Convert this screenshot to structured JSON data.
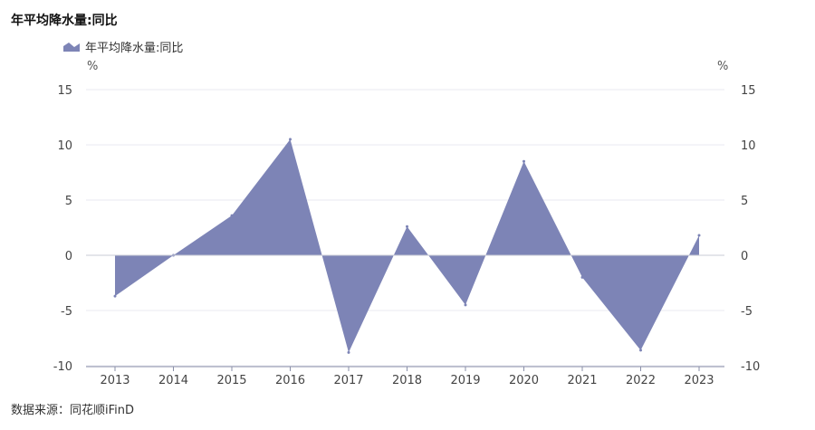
{
  "title": "年平均降水量:同比",
  "legend": {
    "label": "年平均降水量:同比",
    "color": "#7d84b6"
  },
  "unit_left": "%",
  "unit_right": "%",
  "source": "数据来源：同花顺iFinD",
  "chart_data": {
    "type": "area",
    "title": "年平均降水量:同比",
    "categories": [
      "2013",
      "2014",
      "2015",
      "2016",
      "2017",
      "2018",
      "2019",
      "2020",
      "2021",
      "2022",
      "2023"
    ],
    "series": [
      {
        "name": "年平均降水量:同比",
        "values": [
          -3.7,
          0.0,
          3.6,
          10.5,
          -8.8,
          2.6,
          -4.5,
          8.5,
          -2.0,
          -8.6,
          1.8
        ],
        "color": "#7d84b6"
      }
    ],
    "ylim": [
      -10,
      15
    ],
    "yticks": [
      15,
      10,
      5,
      0,
      -5,
      -10
    ],
    "ytick_labels": [
      "15",
      "10",
      "5",
      "0",
      "-5",
      "-10"
    ],
    "grid": true,
    "legend_position": "top-left"
  }
}
